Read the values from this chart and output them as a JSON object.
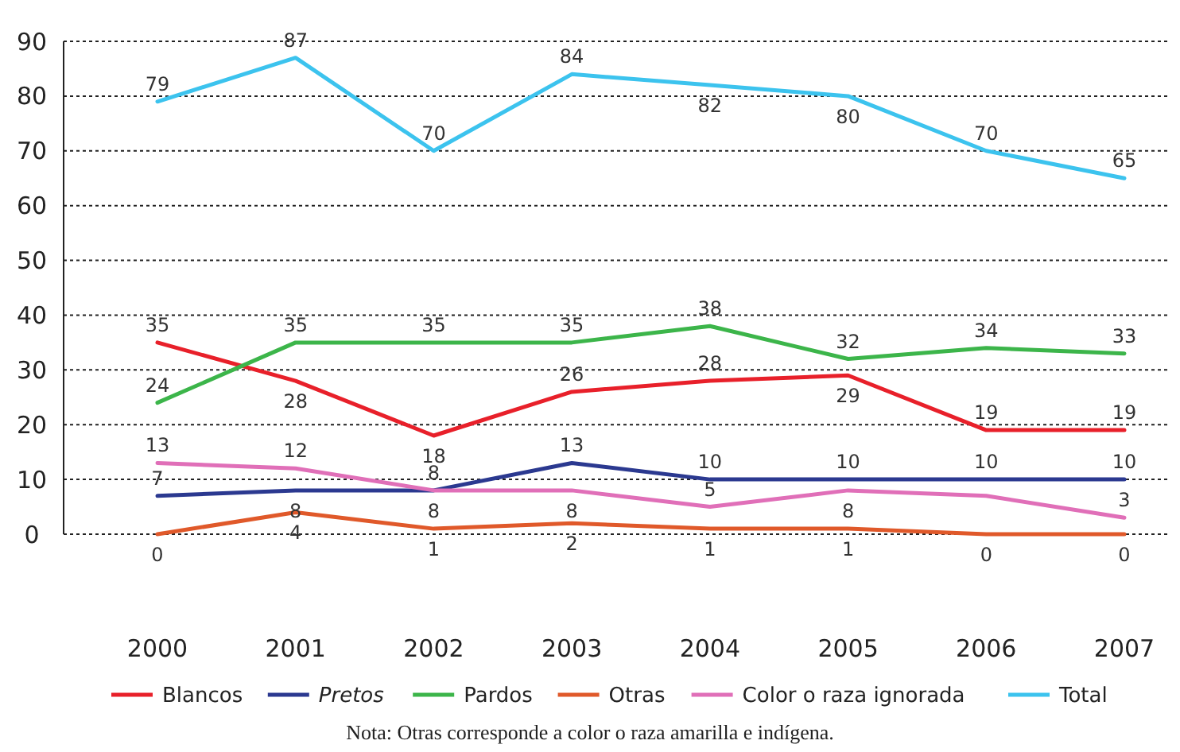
{
  "chart_data": {
    "type": "line",
    "categories": [
      "2000",
      "2001",
      "2002",
      "2003",
      "2004",
      "2005",
      "2006",
      "2007"
    ],
    "ylim": [
      0,
      90
    ],
    "yticks": [
      0,
      10,
      20,
      30,
      40,
      50,
      60,
      70,
      80,
      90
    ],
    "grid": "y",
    "legend": "bottom",
    "marker": "none",
    "line_style": "solid",
    "series": [
      {
        "name": "Blancos",
        "color": "#e8202a",
        "values": [
          35,
          28,
          18,
          26,
          28,
          29,
          19,
          19
        ],
        "value_labels": [
          "35",
          "28",
          "18",
          "26",
          "28",
          "29",
          "19",
          "19"
        ]
      },
      {
        "name": "Pretos",
        "color": "#2b3990",
        "values": [
          7,
          8,
          8,
          13,
          10,
          10,
          10,
          10
        ],
        "value_labels": [
          "7",
          "8",
          "8",
          "13",
          "10",
          "10",
          "10",
          "10"
        ]
      },
      {
        "name": "Pardos",
        "color": "#3cb54a",
        "values": [
          24,
          35,
          35,
          35,
          38,
          32,
          34,
          33
        ],
        "value_labels": [
          "24",
          "35",
          "35",
          "35",
          "38",
          "32",
          "34",
          "33"
        ]
      },
      {
        "name": "Otras",
        "color": "#e0592a",
        "values": [
          0,
          4,
          1,
          2,
          1,
          1,
          0,
          0
        ],
        "value_labels": [
          "0",
          "4",
          "1",
          "2",
          "1",
          "1",
          "0",
          "0"
        ]
      },
      {
        "name": "Color o raza ignorada",
        "color": "#e06fb8",
        "values": [
          13,
          12,
          8,
          8,
          5,
          8,
          7,
          3
        ],
        "value_labels": [
          "13",
          "12",
          "8",
          "8",
          "5",
          "8",
          null,
          "3"
        ]
      },
      {
        "name": "Total",
        "color": "#3cc3ee",
        "values": [
          79,
          87,
          70,
          84,
          82,
          80,
          70,
          65
        ],
        "value_labels": [
          "79",
          "87",
          "70",
          "84",
          "82",
          "80",
          "70",
          "65"
        ]
      }
    ],
    "annotations": [
      "Nota: Otras corresponde a color o raza amarilla e indígena."
    ]
  }
}
